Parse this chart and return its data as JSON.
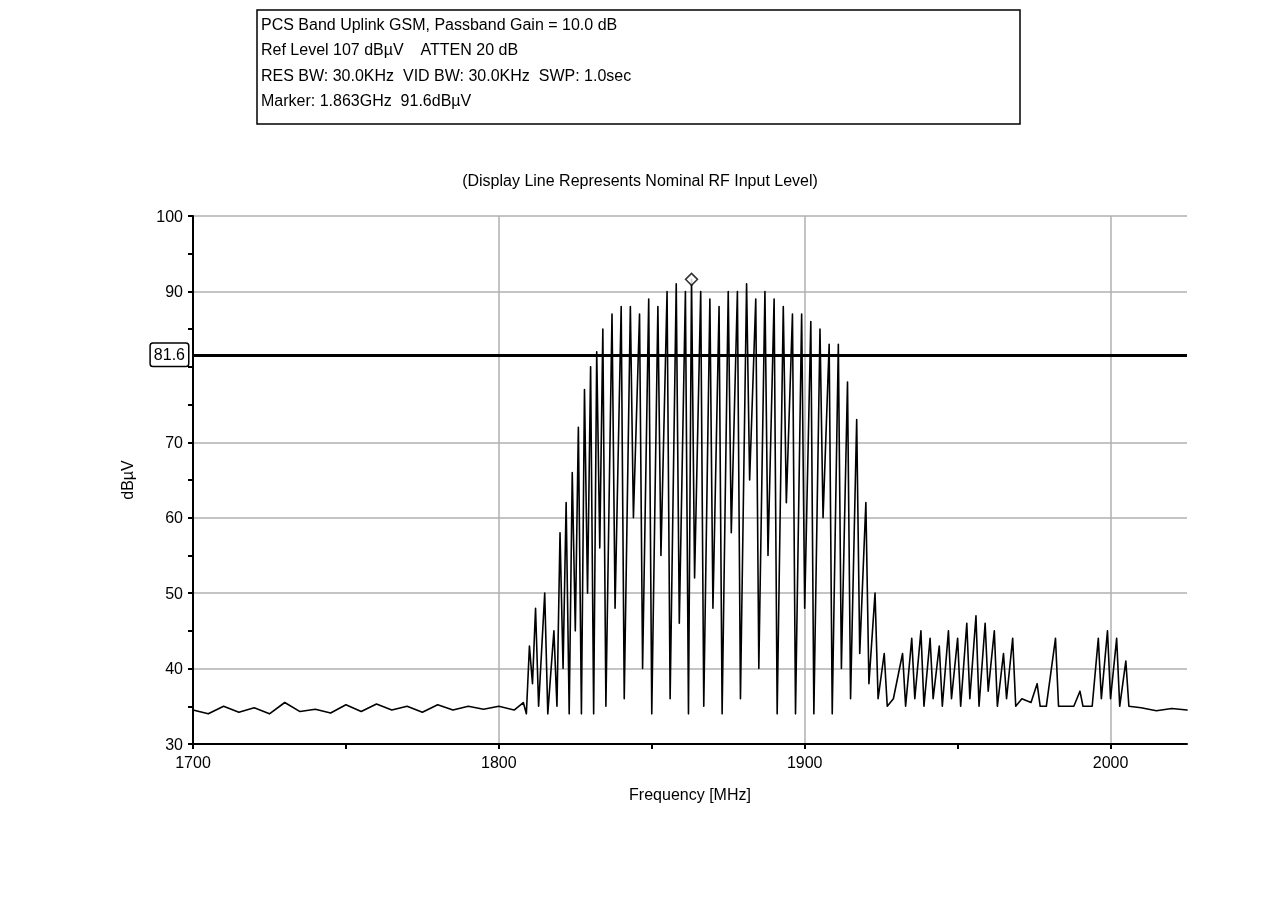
{
  "chart_data": {
    "type": "line",
    "title": "PCS Band Uplink GSM, Passband Gain = 10.0 dB",
    "subtitle": "(Display Line Represents Nominal RF Input Level)",
    "annotations": [
      "Ref Level 107 dBµV    ATTEN 20 dB",
      "RES BW: 30.0KHz  VID BW: 30.0KHz  SWP: 1.0sec",
      "Marker: 1.863GHz  91.6dBµV"
    ],
    "xlabel": "Frequency [MHz]",
    "ylabel": "dBµV",
    "xlim": [
      1700,
      2025
    ],
    "ylim": [
      30,
      100
    ],
    "xticks": [
      1700,
      {
        "value": 1750,
        "label": null
      },
      1800,
      {
        "value": 1850,
        "label": null
      },
      1900,
      {
        "value": 1950,
        "label": null
      },
      2000
    ],
    "yticks": [
      30,
      {
        "value": 35,
        "label": null
      },
      40,
      {
        "value": 45,
        "label": null
      },
      50,
      {
        "value": 55,
        "label": null
      },
      60,
      {
        "value": 65,
        "label": null
      },
      70,
      {
        "value": 75,
        "label": null
      },
      {
        "value": 80,
        "label": null
      },
      {
        "value": 85,
        "label": null
      },
      90,
      {
        "value": 95,
        "label": null
      },
      100
    ],
    "grid": true,
    "marker": "none",
    "line_style": "solid",
    "ref_lines": [
      {
        "axis": "y",
        "value": 81.6,
        "label": "81.6",
        "color": "#000000"
      }
    ],
    "series": [
      {
        "color": "#000000",
        "x": [
          1700,
          1705,
          1710,
          1715,
          1720,
          1725,
          1730,
          1735,
          1740,
          1745,
          1750,
          1755,
          1760,
          1765,
          1770,
          1775,
          1780,
          1785,
          1790,
          1795,
          1800,
          1805,
          1808,
          1809,
          1810,
          1811,
          1812,
          1813,
          1815,
          1816,
          1818,
          1819,
          1820,
          1821,
          1822,
          1823,
          1824,
          1825,
          1826,
          1827,
          1828,
          1829,
          1830,
          1831,
          1832,
          1833,
          1834,
          1835,
          1837,
          1838,
          1840,
          1841,
          1843,
          1844,
          1846,
          1847,
          1849,
          1850,
          1852,
          1853,
          1855,
          1856,
          1858,
          1859,
          1861,
          1862,
          1863,
          1864,
          1866,
          1867,
          1869,
          1870,
          1872,
          1873,
          1875,
          1876,
          1878,
          1879,
          1881,
          1882,
          1884,
          1885,
          1887,
          1888,
          1890,
          1891,
          1893,
          1894,
          1896,
          1897,
          1899,
          1900,
          1902,
          1903,
          1905,
          1906,
          1908,
          1909,
          1911,
          1912,
          1914,
          1915,
          1917,
          1918,
          1920,
          1921,
          1923,
          1924,
          1926,
          1927,
          1929,
          1932,
          1933,
          1935,
          1936,
          1938,
          1939,
          1941,
          1942,
          1944,
          1945,
          1947,
          1948,
          1950,
          1951,
          1953,
          1954,
          1956,
          1957,
          1959,
          1960,
          1962,
          1963,
          1965,
          1966,
          1968,
          1969,
          1971,
          1974,
          1976,
          1977,
          1979,
          1982,
          1983,
          1985,
          1988,
          1990,
          1991,
          1994,
          1996,
          1997,
          1999,
          2000,
          2002,
          2003,
          2005,
          2006,
          2010,
          2015,
          2020,
          2025
        ],
        "values": [
          34.5,
          34,
          35,
          34.2,
          34.8,
          34,
          35.5,
          34.3,
          34.6,
          34.1,
          35.2,
          34.3,
          35.3,
          34.5,
          35,
          34.2,
          35.2,
          34.5,
          35,
          34.6,
          35,
          34.5,
          35.5,
          34,
          43,
          38,
          48,
          35,
          50,
          34,
          45,
          35,
          58,
          40,
          62,
          34,
          66,
          45,
          72,
          34,
          77,
          50,
          80,
          34,
          82,
          56,
          85,
          35,
          87,
          48,
          88,
          36,
          88,
          60,
          87,
          40,
          89,
          34,
          88,
          55,
          90,
          36,
          91,
          46,
          90,
          34,
          91.6,
          52,
          90,
          35,
          89,
          48,
          88,
          34,
          90,
          58,
          90,
          36,
          91,
          65,
          89,
          40,
          90,
          55,
          89,
          34,
          88,
          62,
          87,
          34,
          87,
          48,
          86,
          34,
          85,
          60,
          83,
          34,
          83,
          40,
          78,
          36,
          73,
          42,
          62,
          38,
          50,
          36,
          42,
          35,
          36,
          42,
          35,
          44,
          36,
          45,
          35,
          44,
          36,
          43,
          35,
          45,
          36,
          44,
          35,
          46,
          36,
          47,
          35,
          46,
          37,
          45,
          35,
          42,
          36,
          44,
          35,
          36,
          35.5,
          38,
          35,
          35,
          44,
          35,
          35,
          35,
          37,
          35,
          35,
          44,
          36,
          45,
          36,
          44,
          35,
          41,
          35,
          34.8,
          34.4,
          34.7,
          34.5
        ]
      },
      {
        "type": "scatter",
        "marker": "diamond",
        "color": "#000000",
        "x": [
          1863
        ],
        "values": [
          91.6
        ]
      }
    ]
  }
}
